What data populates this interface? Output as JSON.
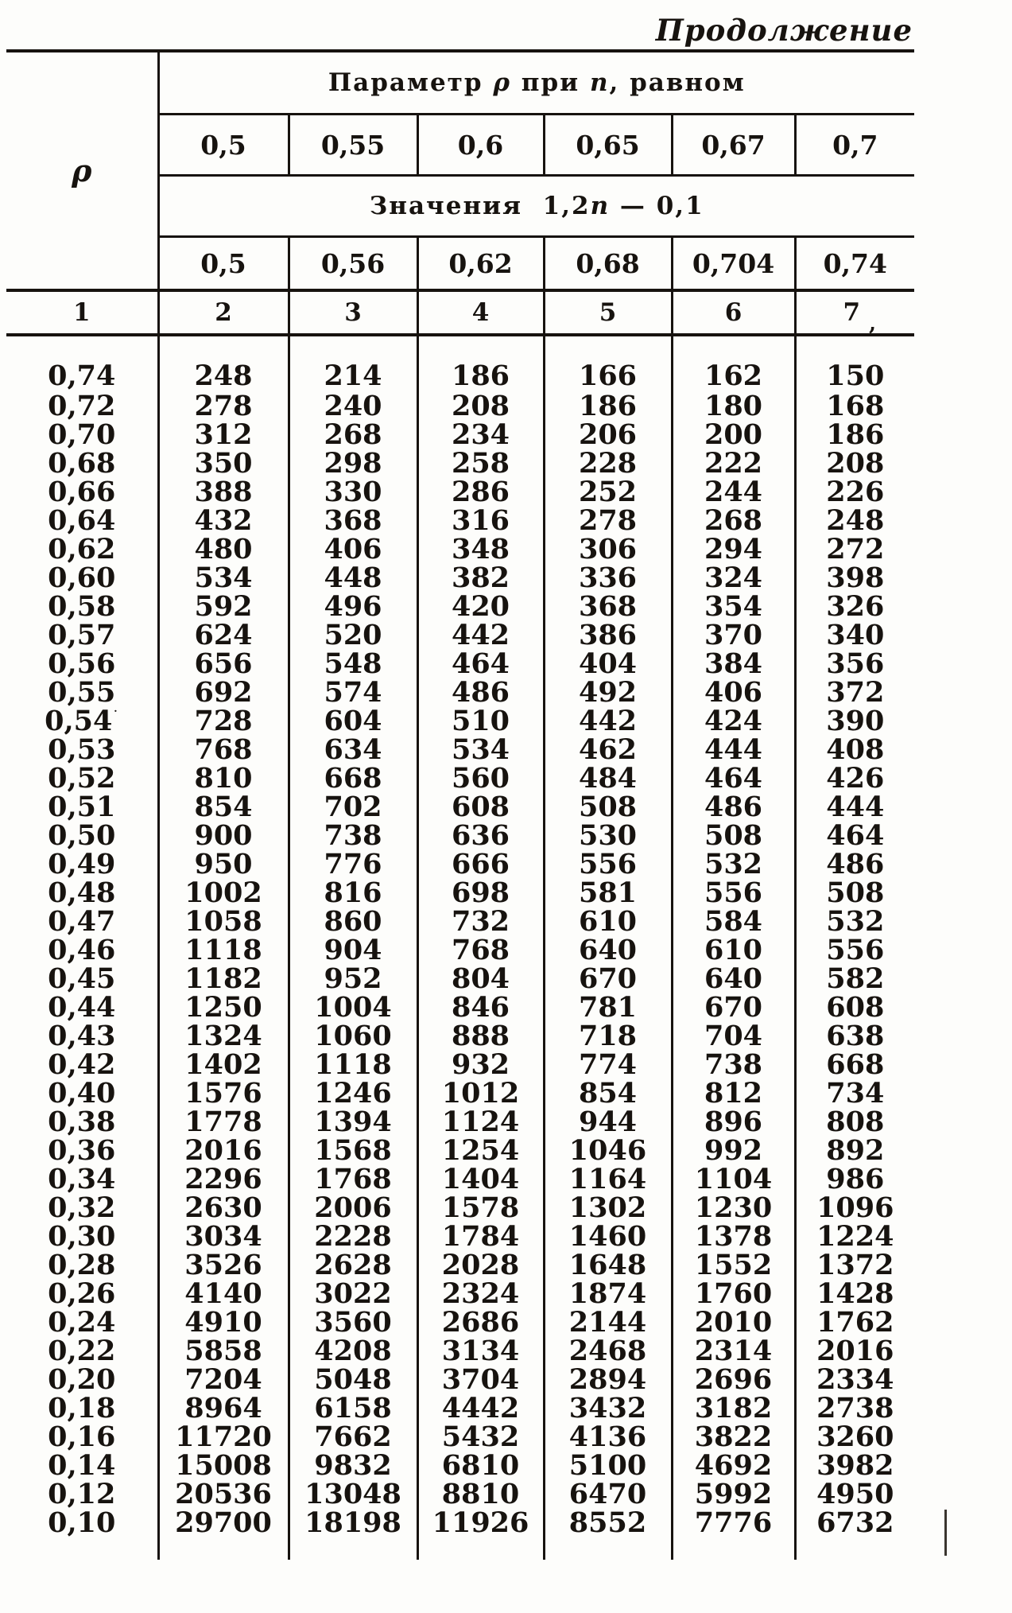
{
  "page": {
    "continuation_title": "Продолжение"
  },
  "table": {
    "rho_symbol": "ρ",
    "param_header": {
      "p1": "Параметр",
      "rho": "ρ",
      "p2": "при",
      "n": "n",
      "p3": ", равном"
    },
    "n_values": [
      "0,5",
      "0,55",
      "0,6",
      "0,65",
      "0,67",
      "0,7"
    ],
    "values_header": {
      "p1": "Значения",
      "f1": "1,2",
      "n": "n",
      "f2": "— 0,1"
    },
    "transformed_values": [
      "0,5",
      "0,56",
      "0,62",
      "0,68",
      "0,704",
      "0,74"
    ],
    "column_numbers": [
      "1",
      "2",
      "3",
      "4",
      "5",
      "6",
      "7"
    ],
    "col7_artifact": ",",
    "rows": [
      {
        "rho": "0,74",
        "values": [
          "248",
          "214",
          "186",
          "166",
          "162",
          "150"
        ]
      },
      {
        "rho": "0,72",
        "values": [
          "278",
          "240",
          "208",
          "186",
          "180",
          "168"
        ]
      },
      {
        "rho": "0,70",
        "values": [
          "312",
          "268",
          "234",
          "206",
          "200",
          "186"
        ]
      },
      {
        "rho": "0,68",
        "values": [
          "350",
          "298",
          "258",
          "228",
          "222",
          "208"
        ]
      },
      {
        "rho": "0,66",
        "values": [
          "388",
          "330",
          "286",
          "252",
          "244",
          "226"
        ]
      },
      {
        "rho": "0,64",
        "values": [
          "432",
          "368",
          "316",
          "278",
          "268",
          "248"
        ]
      },
      {
        "rho": "0,62",
        "values": [
          "480",
          "406",
          "348",
          "306",
          "294",
          "272"
        ]
      },
      {
        "rho": "0,60",
        "values": [
          "534",
          "448",
          "382",
          "336",
          "324",
          "398"
        ]
      },
      {
        "rho": "0,58",
        "values": [
          "592",
          "496",
          "420",
          "368",
          "354",
          "326"
        ]
      },
      {
        "rho": "0,57",
        "values": [
          "624",
          "520",
          "442",
          "386",
          "370",
          "340"
        ]
      },
      {
        "rho": "0,56",
        "values": [
          "656",
          "548",
          "464",
          "404",
          "384",
          "356"
        ]
      },
      {
        "rho": "0,55",
        "values": [
          "692",
          "574",
          "486",
          "492",
          "406",
          "372"
        ]
      },
      {
        "rho": "0,54",
        "mark": "˙",
        "values": [
          "728",
          "604",
          "510",
          "442",
          "424",
          "390"
        ]
      },
      {
        "rho": "0,53",
        "values": [
          "768",
          "634",
          "534",
          "462",
          "444",
          "408"
        ]
      },
      {
        "rho": "0,52",
        "values": [
          "810",
          "668",
          "560",
          "484",
          "464",
          "426"
        ]
      },
      {
        "rho": "0,51",
        "values": [
          "854",
          "702",
          "608",
          "508",
          "486",
          "444"
        ]
      },
      {
        "rho": "0,50",
        "values": [
          "900",
          "738",
          "636",
          "530",
          "508",
          "464"
        ]
      },
      {
        "rho": "0,49",
        "values": [
          "950",
          "776",
          "666",
          "556",
          "532",
          "486"
        ]
      },
      {
        "rho": "0,48",
        "values": [
          "1002",
          "816",
          "698",
          "581",
          "556",
          "508"
        ]
      },
      {
        "rho": "0,47",
        "values": [
          "1058",
          "860",
          "732",
          "610",
          "584",
          "532"
        ]
      },
      {
        "rho": "0,46",
        "values": [
          "1118",
          "904",
          "768",
          "640",
          "610",
          "556"
        ]
      },
      {
        "rho": "0,45",
        "values": [
          "1182",
          "952",
          "804",
          "670",
          "640",
          "582"
        ]
      },
      {
        "rho": "0,44",
        "values": [
          "1250",
          "1004",
          "846",
          "781",
          "670",
          "608"
        ]
      },
      {
        "rho": "0,43",
        "values": [
          "1324",
          "1060",
          "888",
          "718",
          "704",
          "638"
        ]
      },
      {
        "rho": "0,42",
        "values": [
          "1402",
          "1118",
          "932",
          "774",
          "738",
          "668"
        ]
      },
      {
        "rho": "0,40",
        "values": [
          "1576",
          "1246",
          "1012",
          "854",
          "812",
          "734"
        ]
      },
      {
        "rho": "0,38",
        "values": [
          "1778",
          "1394",
          "1124",
          "944",
          "896",
          "808"
        ]
      },
      {
        "rho": "0,36",
        "values": [
          "2016",
          "1568",
          "1254",
          "1046",
          "992",
          "892"
        ]
      },
      {
        "rho": "0,34",
        "values": [
          "2296",
          "1768",
          "1404",
          "1164",
          "1104",
          "986"
        ]
      },
      {
        "rho": "0,32",
        "values": [
          "2630",
          "2006",
          "1578",
          "1302",
          "1230",
          "1096"
        ]
      },
      {
        "rho": "0,30",
        "values": [
          "3034",
          "2228",
          "1784",
          "1460",
          "1378",
          "1224"
        ]
      },
      {
        "rho": "0,28",
        "values": [
          "3526",
          "2628",
          "2028",
          "1648",
          "1552",
          "1372"
        ]
      },
      {
        "rho": "0,26",
        "values": [
          "4140",
          "3022",
          "2324",
          "1874",
          "1760",
          "1428"
        ]
      },
      {
        "rho": "0,24",
        "values": [
          "4910",
          "3560",
          "2686",
          "2144",
          "2010",
          "1762"
        ]
      },
      {
        "rho": "0,22",
        "values": [
          "5858",
          "4208",
          "3134",
          "2468",
          "2314",
          "2016"
        ]
      },
      {
        "rho": "0,20",
        "values": [
          "7204",
          "5048",
          "3704",
          "2894",
          "2696",
          "2334"
        ]
      },
      {
        "rho": "0,18",
        "values": [
          "8964",
          "6158",
          "4442",
          "3432",
          "3182",
          "2738"
        ]
      },
      {
        "rho": "0,16",
        "values": [
          "11720",
          "7662",
          "5432",
          "4136",
          "3822",
          "3260"
        ]
      },
      {
        "rho": "0,14",
        "values": [
          "15008",
          "9832",
          "6810",
          "5100",
          "4692",
          "3982"
        ]
      },
      {
        "rho": "0,12",
        "values": [
          "20536",
          "13048",
          "8810",
          "6470",
          "5992",
          "4950"
        ]
      },
      {
        "rho": "0,10",
        "values": [
          "29700",
          "18198",
          "11926",
          "8552",
          "7776",
          "6732"
        ]
      }
    ]
  }
}
